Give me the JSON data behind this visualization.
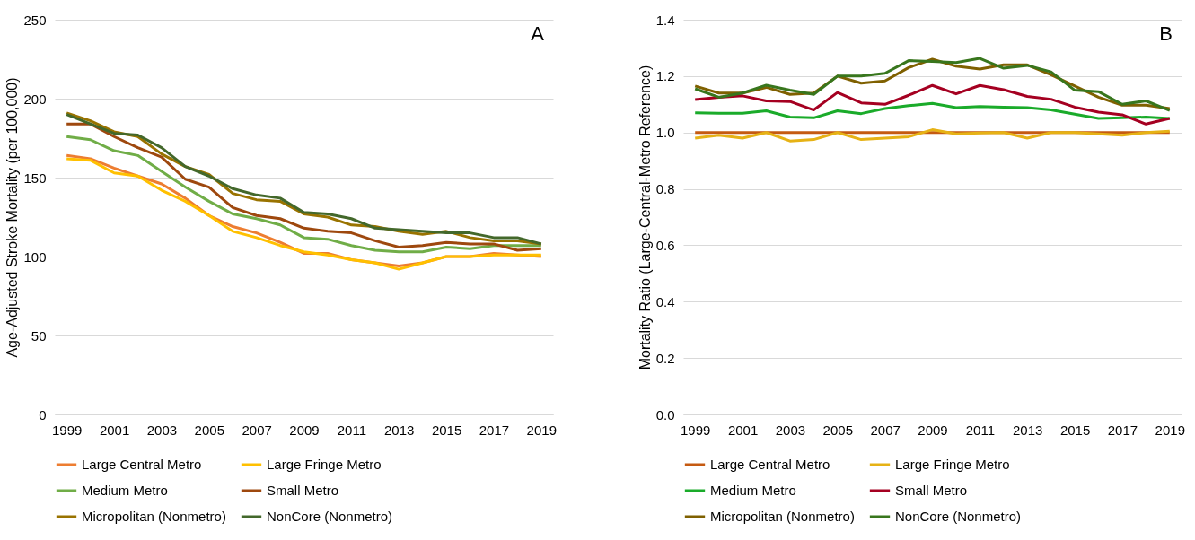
{
  "chart_data": [
    {
      "type": "line",
      "ylabel": "Age-Adjusted Stroke Mortality (per 100,000)",
      "annotations": [
        "A"
      ],
      "categories": [
        "1999",
        null,
        "2001",
        null,
        "2003",
        null,
        "2005",
        null,
        "2007",
        null,
        "2009",
        null,
        "2011",
        null,
        "2013",
        null,
        "2015",
        null,
        "2017",
        null,
        "2019"
      ],
      "ylim": [
        0,
        250
      ],
      "yticks": [
        0,
        50,
        100,
        150,
        200,
        250
      ],
      "grid": "y",
      "legend": "bottom",
      "series": [
        {
          "name": "Large Central Metro",
          "color": "#ed7d31",
          "values": [
            164,
            162,
            156,
            151,
            146,
            137,
            126,
            119,
            115,
            109,
            102,
            102,
            98,
            96,
            94,
            96,
            100,
            100,
            102,
            101,
            100
          ]
        },
        {
          "name": "Large Fringe Metro",
          "color": "#ffc000",
          "values": [
            162,
            161,
            153,
            151,
            142,
            135,
            126,
            116,
            112,
            107,
            103,
            101,
            98,
            96,
            92,
            96,
            100,
            100,
            101,
            101,
            101
          ]
        },
        {
          "name": "Medium Metro",
          "color": "#70ad47",
          "values": [
            176,
            174,
            167,
            164,
            154,
            144,
            135,
            127,
            124,
            120,
            112,
            111,
            107,
            104,
            103,
            103,
            106,
            105,
            107,
            107,
            107
          ]
        },
        {
          "name": "Small Metro",
          "color": "#9e480e",
          "values": [
            184,
            184,
            176,
            169,
            163,
            149,
            144,
            131,
            126,
            124,
            118,
            116,
            115,
            110,
            106,
            107,
            109,
            108,
            108,
            104,
            105
          ]
        },
        {
          "name": "Micropolitan (Nonmetro)",
          "color": "#997300",
          "values": [
            191,
            186,
            179,
            176,
            165,
            157,
            152,
            140,
            136,
            135,
            127,
            125,
            120,
            119,
            116,
            114,
            116,
            112,
            110,
            110,
            108
          ]
        },
        {
          "name": "NonCore (Nonmetro)",
          "color": "#43682b",
          "values": [
            190,
            184,
            178,
            177,
            169,
            157,
            151,
            143,
            139,
            137,
            128,
            127,
            124,
            118,
            117,
            116,
            115,
            115,
            112,
            112,
            108
          ]
        }
      ]
    },
    {
      "type": "line",
      "ylabel": "Mortality Ratio (Large-Central-Metro Reference)",
      "annotations": [
        "B"
      ],
      "categories": [
        "1999",
        null,
        "2001",
        null,
        "2003",
        null,
        "2005",
        null,
        "2007",
        null,
        "2009",
        null,
        "2011",
        null,
        "2013",
        null,
        "2015",
        null,
        "2017",
        null,
        "2019"
      ],
      "ylim": [
        0,
        1.4
      ],
      "yticks": [
        {
          "value": 0,
          "label": "0.0"
        },
        {
          "value": 0.2,
          "label": "0.2"
        },
        {
          "value": 0.4,
          "label": "0.4"
        },
        {
          "value": 0.6,
          "label": "0.6"
        },
        {
          "value": 0.8,
          "label": "0.8"
        },
        {
          "value": 1,
          "label": "1.0"
        },
        {
          "value": 1.2,
          "label": "1.2"
        },
        {
          "value": 1.4,
          "label": "1.4"
        }
      ],
      "grid": "y",
      "legend": "bottom",
      "series": [
        {
          "name": "Large Central Metro",
          "color": "#c55a11",
          "values": [
            1,
            1,
            1,
            1,
            1,
            1,
            1,
            1,
            1,
            1,
            1,
            1,
            1,
            1,
            1,
            1,
            1,
            1,
            1,
            1,
            1
          ]
        },
        {
          "name": "Large Fringe Metro",
          "color": "#e6b215",
          "values": [
            0.98,
            0.99,
            0.98,
            1.0,
            0.97,
            0.975,
            1.0,
            0.975,
            0.98,
            0.985,
            1.01,
            0.995,
            0.998,
            1.0,
            0.98,
            1.0,
            1.0,
            0.995,
            0.99,
            1.0,
            1.005
          ]
        },
        {
          "name": "Medium Metro",
          "color": "#1aab2a",
          "values": [
            1.07,
            1.068,
            1.068,
            1.077,
            1.055,
            1.052,
            1.077,
            1.067,
            1.085,
            1.095,
            1.103,
            1.088,
            1.092,
            1.09,
            1.088,
            1.08,
            1.065,
            1.05,
            1.052,
            1.055,
            1.05
          ]
        },
        {
          "name": "Small Metro",
          "color": "#a50021",
          "values": [
            1.117,
            1.125,
            1.13,
            1.112,
            1.11,
            1.08,
            1.142,
            1.105,
            1.1,
            1.132,
            1.167,
            1.137,
            1.167,
            1.152,
            1.128,
            1.118,
            1.09,
            1.072,
            1.063,
            1.03,
            1.05
          ]
        },
        {
          "name": "Micropolitan (Nonmetro)",
          "color": "#7f6000",
          "values": [
            1.165,
            1.14,
            1.14,
            1.16,
            1.135,
            1.14,
            1.2,
            1.175,
            1.183,
            1.23,
            1.26,
            1.235,
            1.225,
            1.24,
            1.24,
            1.205,
            1.165,
            1.125,
            1.097,
            1.097,
            1.085
          ]
        },
        {
          "name": "NonCore (Nonmetro)",
          "color": "#38761d",
          "values": [
            1.155,
            1.125,
            1.14,
            1.168,
            1.15,
            1.135,
            1.2,
            1.2,
            1.21,
            1.255,
            1.252,
            1.248,
            1.263,
            1.228,
            1.238,
            1.215,
            1.15,
            1.145,
            1.1,
            1.112,
            1.078
          ]
        }
      ]
    }
  ]
}
